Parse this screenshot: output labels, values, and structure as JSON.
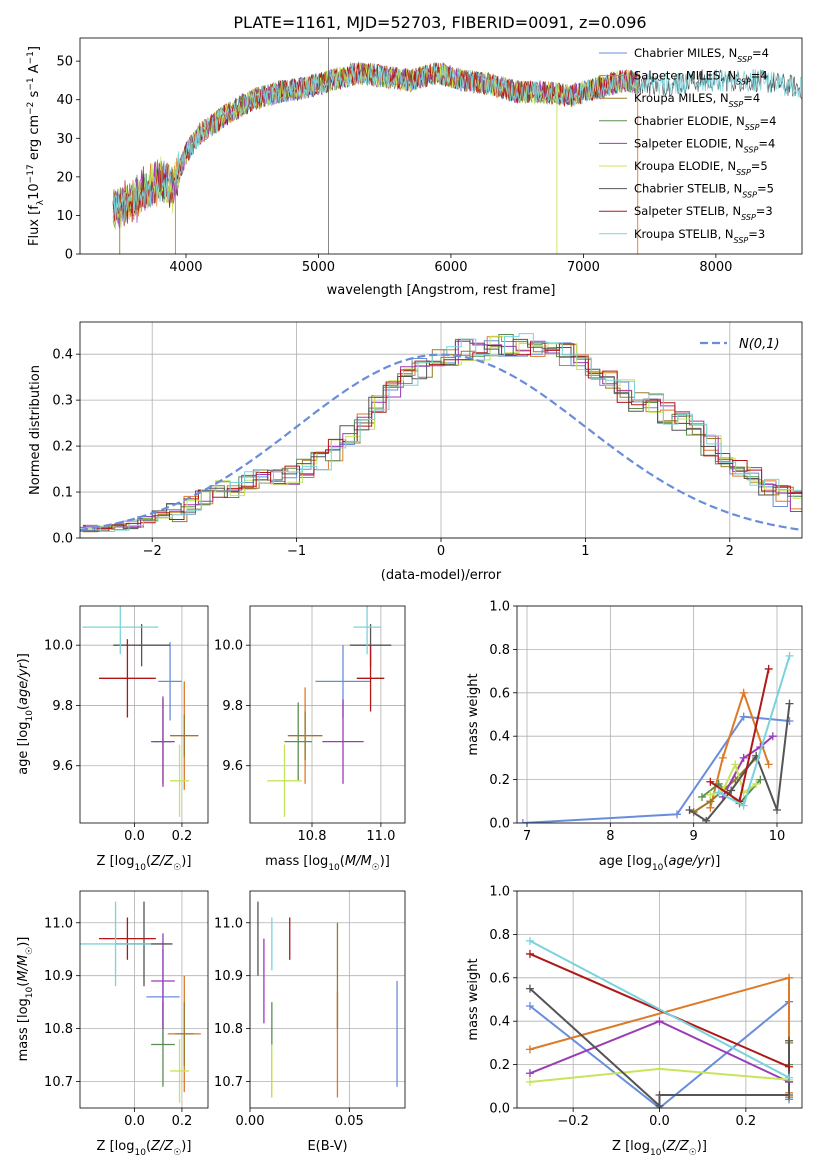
{
  "figure": {
    "title": "PLATE=1161, MJD=52703, FIBERID=0091, z=0.096"
  },
  "colors": [
    "#6a8ddb",
    "#dd7a28",
    "#9d7a2a",
    "#5a8f50",
    "#9b3bb5",
    "#c7e55a",
    "#555555",
    "#b01818",
    "#7ad3db"
  ],
  "chart_data": [
    {
      "id": "spectrum",
      "type": "line",
      "title": "PLATE=1161, MJD=52703, FIBERID=0091, z=0.096",
      "xlabel": "wavelength [Angstrom, rest frame]",
      "ylabel": "Flux [fλ10⁻¹⁷ erg cm⁻² s⁻¹ A⁻¹]",
      "xlim": [
        3200,
        8650
      ],
      "ylim": [
        0,
        56
      ],
      "xticks": [
        4000,
        5000,
        6000,
        7000,
        8000
      ],
      "yticks": [
        0,
        10,
        20,
        30,
        40,
        50
      ],
      "grid": false,
      "legend_position": "top-right",
      "series_names": [
        "Chabrier MILES, NSSP=4",
        "Salpeter MILES, NSSP=4",
        "Kroupa MILES, NSSP=4",
        "Chabrier ELODIE, NSSP=4",
        "Salpeter ELODIE, NSSP=4",
        "Kroupa ELODIE, NSSP=5",
        "Chabrier STELIB, NSSP=5",
        "Salpeter STELIB, NSSP=3",
        "Kroupa STELIB, NSSP=3"
      ],
      "continuum": {
        "x": [
          3450,
          3600,
          3800,
          3900,
          4000,
          4100,
          4300,
          4500,
          4700,
          4900,
          5100,
          5300,
          5500,
          5700,
          5900,
          6100,
          6300,
          6500,
          6700,
          6900,
          7100,
          7300,
          7500,
          7700,
          7900,
          8100,
          8300,
          8500,
          8650
        ],
        "y": [
          11,
          14,
          19,
          17,
          26,
          31,
          36,
          40,
          42,
          43,
          45,
          47,
          46,
          45,
          47,
          45,
          44,
          42,
          42,
          41,
          43,
          45,
          44,
          44,
          45,
          45,
          45,
          44,
          43
        ]
      }
    },
    {
      "id": "residuals",
      "type": "line",
      "xlabel": "(data-model)/error",
      "ylabel": "Normed distribution",
      "xlim": [
        -2.5,
        2.5
      ],
      "ylim": [
        0,
        0.47
      ],
      "xticks": [
        -2,
        -1,
        0,
        1,
        2
      ],
      "yticks": [
        0.0,
        0.1,
        0.2,
        0.3,
        0.4
      ],
      "grid": true,
      "legend": "N(0,1)",
      "legend_position": "top-right",
      "gaussian": {
        "mean": 0,
        "sigma": 1
      },
      "bin_width": 0.1,
      "base_hist": [
        0.02,
        0.02,
        0.025,
        0.03,
        0.04,
        0.05,
        0.06,
        0.07,
        0.09,
        0.1,
        0.11,
        0.12,
        0.13,
        0.13,
        0.14,
        0.15,
        0.17,
        0.19,
        0.22,
        0.26,
        0.29,
        0.32,
        0.35,
        0.37,
        0.39,
        0.4,
        0.41,
        0.41,
        0.42,
        0.42,
        0.42,
        0.42,
        0.41,
        0.4,
        0.38,
        0.36,
        0.34,
        0.32,
        0.3,
        0.29,
        0.27,
        0.25,
        0.23,
        0.2,
        0.17,
        0.15,
        0.13,
        0.11,
        0.09,
        0.08,
        0.07,
        0.06,
        0.05,
        0.05,
        0.04,
        0.04,
        0.035,
        0.03,
        0.03,
        0.025,
        0.02,
        0.02,
        0.02,
        0.015,
        0.015,
        0.01,
        0.01,
        0.01,
        0.01,
        0.01
      ]
    },
    {
      "id": "age-vs-Z",
      "type": "scatter",
      "xlabel": "Z [log10(Z/Z☉)]",
      "ylabel": "age  [log10(age/yr)]",
      "xlim": [
        -0.23,
        0.31
      ],
      "ylim": [
        9.41,
        10.13
      ],
      "xticks": [
        0.0,
        0.2
      ],
      "yticks": [
        9.6,
        9.8,
        10.0
      ],
      "grid": true,
      "points": [
        {
          "x": 0.15,
          "y": 9.88,
          "xerr": 0.05,
          "yerr": 0.13
        },
        {
          "x": 0.21,
          "y": 9.7,
          "xerr": 0.06,
          "yerr": 0.18
        },
        {
          "x": 0.21,
          "y": 9.7,
          "xerr": 0.06,
          "yerr": 0.07
        },
        {
          "x": 0.12,
          "y": 9.68,
          "xerr": 0.04,
          "yerr": 0.14
        },
        {
          "x": 0.12,
          "y": 9.68,
          "xerr": 0.05,
          "yerr": 0.15
        },
        {
          "x": 0.19,
          "y": 9.55,
          "xerr": 0.04,
          "yerr": 0.12
        },
        {
          "x": 0.03,
          "y": 10.0,
          "xerr": 0.12,
          "yerr": 0.07
        },
        {
          "x": -0.03,
          "y": 9.89,
          "xerr": 0.12,
          "yerr": 0.13
        },
        {
          "x": -0.06,
          "y": 10.06,
          "xerr": 0.16,
          "yerr": 0.09
        }
      ]
    },
    {
      "id": "age-vs-mass",
      "type": "scatter",
      "xlabel": "mass [log10(M/M☉)]",
      "ylabel": "",
      "xlim": [
        10.62,
        11.07
      ],
      "ylim": [
        9.41,
        10.13
      ],
      "xticks": [
        10.8,
        11.0
      ],
      "yticks": [
        9.6,
        9.8,
        10.0
      ],
      "grid": true,
      "points": [
        {
          "x": 10.89,
          "y": 9.88,
          "xerr": 0.08,
          "yerr": 0.12
        },
        {
          "x": 10.78,
          "y": 9.7,
          "xerr": 0.05,
          "yerr": 0.16
        },
        {
          "x": 10.78,
          "y": 9.7,
          "xerr": 0.05,
          "yerr": 0.08
        },
        {
          "x": 10.76,
          "y": 9.68,
          "xerr": 0.04,
          "yerr": 0.13
        },
        {
          "x": 10.89,
          "y": 9.68,
          "xerr": 0.06,
          "yerr": 0.14
        },
        {
          "x": 10.72,
          "y": 9.55,
          "xerr": 0.05,
          "yerr": 0.12
        },
        {
          "x": 10.97,
          "y": 10.0,
          "xerr": 0.06,
          "yerr": 0.07
        },
        {
          "x": 10.97,
          "y": 9.89,
          "xerr": 0.04,
          "yerr": 0.11
        },
        {
          "x": 10.96,
          "y": 10.06,
          "xerr": 0.04,
          "yerr": 0.09
        }
      ]
    },
    {
      "id": "mass-weight-vs-age",
      "type": "line",
      "xlabel": "age  [log10(age/yr)]",
      "ylabel": "mass weight",
      "xlim": [
        6.88,
        10.3
      ],
      "ylim": [
        0,
        1.0
      ],
      "xticks": [
        7,
        8,
        9,
        10
      ],
      "yticks": [
        0.0,
        0.2,
        0.4,
        0.6,
        0.8,
        1.0
      ],
      "grid": true,
      "series": [
        {
          "name": "Chabrier MILES, NSSP=4",
          "x": [
            6.95,
            8.8,
            9.6,
            10.15
          ],
          "y": [
            0.0,
            0.04,
            0.49,
            0.47
          ]
        },
        {
          "name": "Salpeter MILES, NSSP=4",
          "x": [
            9.2,
            9.35,
            9.6,
            9.9
          ],
          "y": [
            0.07,
            0.3,
            0.6,
            0.27
          ]
        },
        {
          "name": "Kroupa MILES, NSSP=4",
          "x": [
            9.0,
            9.2,
            9.5,
            9.75
          ],
          "y": [
            0.05,
            0.1,
            0.2,
            0.3
          ]
        },
        {
          "name": "Chabrier ELODIE, NSSP=4",
          "x": [
            9.1,
            9.3,
            9.55,
            9.8
          ],
          "y": [
            0.12,
            0.18,
            0.09,
            0.2
          ]
        },
        {
          "name": "Salpeter ELODIE, NSSP=4",
          "x": [
            9.35,
            9.6,
            9.8,
            9.95
          ],
          "y": [
            0.12,
            0.3,
            0.35,
            0.4
          ]
        },
        {
          "name": "Kroupa ELODIE, NSSP=5",
          "x": [
            9.2,
            9.35,
            9.5,
            9.6,
            9.75
          ],
          "y": [
            0.13,
            0.15,
            0.27,
            0.14,
            0.18
          ]
        },
        {
          "name": "Chabrier STELIB, NSSP=5",
          "x": [
            8.95,
            9.15,
            9.45,
            9.75,
            10.0,
            10.15
          ],
          "y": [
            0.06,
            0.01,
            0.15,
            0.31,
            0.06,
            0.55
          ]
        },
        {
          "name": "Salpeter STELIB, NSSP=3",
          "x": [
            9.2,
            9.55,
            9.9
          ],
          "y": [
            0.19,
            0.1,
            0.71
          ]
        },
        {
          "name": "Kroupa STELIB, NSSP=3",
          "x": [
            9.3,
            9.6,
            10.15
          ],
          "y": [
            0.14,
            0.08,
            0.77
          ]
        }
      ]
    },
    {
      "id": "mass-vs-Z",
      "type": "scatter",
      "xlabel": "Z [log10(Z/Z☉)]",
      "ylabel": "mass [log10(M/M☉)]",
      "xlim": [
        -0.23,
        0.31
      ],
      "ylim": [
        10.65,
        11.06
      ],
      "xticks": [
        0.0,
        0.2
      ],
      "yticks": [
        10.7,
        10.8,
        10.9,
        11.0
      ],
      "grid": true,
      "points": [
        {
          "x": 0.12,
          "y": 10.86,
          "xerr": 0.07,
          "yerr": 0.09
        },
        {
          "x": 0.21,
          "y": 10.79,
          "xerr": 0.07,
          "yerr": 0.11
        },
        {
          "x": 0.21,
          "y": 10.79,
          "xerr": 0.04,
          "yerr": 0.06
        },
        {
          "x": 0.12,
          "y": 10.77,
          "xerr": 0.05,
          "yerr": 0.08
        },
        {
          "x": 0.12,
          "y": 10.89,
          "xerr": 0.05,
          "yerr": 0.09
        },
        {
          "x": 0.19,
          "y": 10.72,
          "xerr": 0.04,
          "yerr": 0.06
        },
        {
          "x": 0.04,
          "y": 10.96,
          "xerr": 0.12,
          "yerr": 0.08
        },
        {
          "x": -0.03,
          "y": 10.97,
          "xerr": 0.12,
          "yerr": 0.04
        },
        {
          "x": -0.08,
          "y": 10.96,
          "xerr": 0.15,
          "yerr": 0.08
        }
      ]
    },
    {
      "id": "mass-vs-EBV",
      "type": "scatter",
      "xlabel": "E(B-V)",
      "ylabel": "",
      "xlim": [
        0.0,
        0.078
      ],
      "ylim": [
        10.65,
        11.06
      ],
      "xticks": [
        0.0,
        0.05
      ],
      "xtick_labels": [
        "0.00",
        "0.05"
      ],
      "yticks": [
        10.7,
        10.8,
        10.9,
        11.0
      ],
      "grid": true,
      "points": [
        {
          "x": 0.074,
          "y": 10.79,
          "xerr": 0,
          "yerr": 0.1
        },
        {
          "x": 0.044,
          "y": 10.77,
          "xerr": 0,
          "yerr": 0.1
        },
        {
          "x": 0.044,
          "y": 10.9,
          "xerr": 0,
          "yerr": 0.1
        },
        {
          "x": 0.011,
          "y": 10.76,
          "xerr": 0,
          "yerr": 0.09
        },
        {
          "x": 0.007,
          "y": 10.89,
          "xerr": 0,
          "yerr": 0.08
        },
        {
          "x": 0.011,
          "y": 10.72,
          "xerr": 0,
          "yerr": 0.05
        },
        {
          "x": 0.004,
          "y": 10.97,
          "xerr": 0,
          "yerr": 0.07
        },
        {
          "x": 0.02,
          "y": 10.97,
          "xerr": 0,
          "yerr": 0.04
        },
        {
          "x": 0.011,
          "y": 10.96,
          "xerr": 0,
          "yerr": 0.05
        }
      ]
    },
    {
      "id": "mass-weight-vs-Z",
      "type": "line",
      "xlabel": "Z [log10(Z/Z☉)]",
      "ylabel": "mass weight",
      "xlim": [
        -0.33,
        0.33
      ],
      "ylim": [
        0,
        1.0
      ],
      "xticks": [
        -0.2,
        0.0,
        0.2
      ],
      "yticks": [
        0.0,
        0.2,
        0.4,
        0.6,
        0.8,
        1.0
      ],
      "grid": true,
      "series": [
        {
          "name": "Chabrier MILES, NSSP=4",
          "x": [
            -0.3,
            0.0,
            0.3,
            0.3
          ],
          "y": [
            0.47,
            0.0,
            0.49,
            0.04
          ]
        },
        {
          "name": "Salpeter MILES, NSSP=4",
          "x": [
            -0.3,
            0.3,
            0.3
          ],
          "y": [
            0.27,
            0.6,
            0.07
          ]
        },
        {
          "name": "Kroupa MILES, NSSP=4",
          "x": [
            0.3,
            0.3
          ],
          "y": [
            0.3,
            0.05
          ]
        },
        {
          "name": "Chabrier ELODIE, NSSP=4",
          "x": [
            0.3,
            0.3
          ],
          "y": [
            0.2,
            0.12
          ]
        },
        {
          "name": "Salpeter ELODIE, NSSP=4",
          "x": [
            -0.3,
            0.0,
            0.3
          ],
          "y": [
            0.16,
            0.4,
            0.12
          ]
        },
        {
          "name": "Kroupa ELODIE, NSSP=5",
          "x": [
            -0.3,
            0.0,
            0.3
          ],
          "y": [
            0.12,
            0.18,
            0.13
          ]
        },
        {
          "name": "Chabrier STELIB, NSSP=5",
          "x": [
            -0.3,
            0.0,
            0.0,
            0.3,
            0.3
          ],
          "y": [
            0.55,
            0.01,
            0.06,
            0.06,
            0.31
          ]
        },
        {
          "name": "Salpeter STELIB, NSSP=3",
          "x": [
            -0.3,
            0.3
          ],
          "y": [
            0.71,
            0.19
          ]
        },
        {
          "name": "Kroupa STELIB, NSSP=3",
          "x": [
            -0.3,
            0.3
          ],
          "y": [
            0.77,
            0.14
          ]
        }
      ]
    }
  ]
}
